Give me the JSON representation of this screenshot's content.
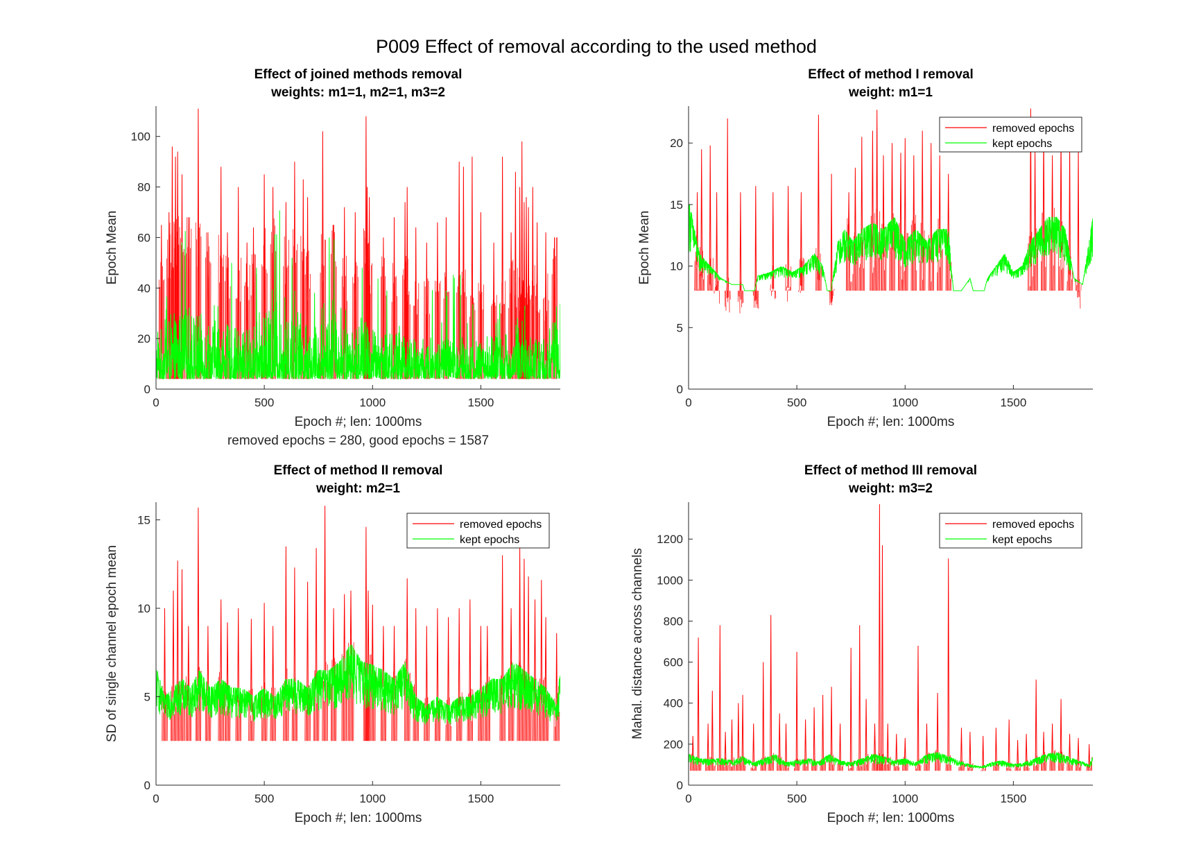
{
  "figure": {
    "title": "P009 Effect of removal according to the used method"
  },
  "colors": {
    "removed": "#ff0000",
    "kept": "#00ff00",
    "axis": "#262626"
  },
  "chart_data": [
    {
      "type": "line",
      "title": "Effect of joined methods removal",
      "subtitle": "weights: m1=1, m2=1, m3=2",
      "xlabel": "Epoch #; len: 1000ms",
      "xlabel2": "removed epochs = 280, good epochs = 1587",
      "ylabel": "Epoch Mean",
      "xlim": [
        0,
        1867
      ],
      "ylim": [
        0,
        112
      ],
      "xticks": [
        0,
        500,
        1000,
        1500
      ],
      "yticks": [
        0,
        20,
        40,
        60,
        80,
        100
      ],
      "legend": null,
      "series": [
        {
          "name": "removed epochs",
          "color": "#ff0000",
          "x": [
            25,
            60,
            75,
            90,
            100,
            120,
            150,
            195,
            240,
            300,
            330,
            380,
            420,
            450,
            500,
            540,
            600,
            640,
            680,
            700,
            770,
            820,
            870,
            920,
            970,
            975,
            985,
            1050,
            1100,
            1150,
            1160,
            1200,
            1250,
            1300,
            1340,
            1400,
            1420,
            1460,
            1500,
            1560,
            1600,
            1640,
            1660,
            1680,
            1690,
            1700,
            1710,
            1720,
            1740,
            1760,
            1800,
            1840
          ],
          "y": [
            65,
            70,
            96,
            92,
            94,
            85,
            68,
            111,
            62,
            88,
            62,
            80,
            58,
            64,
            85,
            80,
            74,
            90,
            83,
            76,
            102,
            65,
            72,
            70,
            108,
            80,
            76,
            60,
            68,
            74,
            80,
            64,
            58,
            66,
            68,
            90,
            88,
            92,
            70,
            58,
            92,
            62,
            86,
            80,
            98,
            74,
            76,
            72,
            80,
            66,
            62,
            60
          ]
        },
        {
          "name": "kept epochs",
          "color": "#00ff00",
          "x": [
            10,
            50,
            100,
            160,
            200,
            250,
            300,
            350,
            400,
            450,
            500,
            560,
            600,
            650,
            700,
            750,
            800,
            850,
            900,
            950,
            1000,
            1050,
            1100,
            1150,
            1200,
            1250,
            1300,
            1350,
            1400,
            1450,
            1500,
            1550,
            1600,
            1650,
            1700,
            1750,
            1800,
            1850
          ],
          "y": [
            45,
            60,
            63,
            70,
            62,
            58,
            55,
            50,
            48,
            52,
            60,
            78,
            55,
            70,
            50,
            52,
            72,
            55,
            45,
            62,
            48,
            55,
            45,
            50,
            38,
            42,
            40,
            44,
            50,
            38,
            40,
            45,
            42,
            48,
            40,
            45,
            38,
            71
          ]
        }
      ]
    },
    {
      "type": "line",
      "title": "Effect of method I removal",
      "subtitle": "weight: m1=1",
      "xlabel": "Epoch #; len: 1000ms",
      "ylabel": "Epoch Mean",
      "xlim": [
        0,
        1867
      ],
      "ylim": [
        0,
        23
      ],
      "xticks": [
        0,
        500,
        1000,
        1500
      ],
      "yticks": [
        0,
        5,
        10,
        15,
        20
      ],
      "legend": "top-right",
      "series": [
        {
          "name": "removed epochs",
          "color": "#ff0000",
          "x": [
            40,
            60,
            100,
            130,
            180,
            240,
            310,
            390,
            460,
            520,
            600,
            660,
            740,
            770,
            800,
            850,
            870,
            900,
            940,
            980,
            1000,
            1040,
            1080,
            1120,
            1160,
            1200,
            1580,
            1600,
            1640,
            1680,
            1720,
            1760,
            1800
          ],
          "y": [
            16,
            19.5,
            19.8,
            16,
            22,
            16,
            16.5,
            16,
            16.5,
            16,
            22.3,
            17.5,
            16,
            18,
            20.5,
            21,
            22.7,
            19,
            20,
            19.2,
            20.4,
            19,
            21,
            20,
            19,
            17.5,
            22.8,
            19.5,
            21,
            19,
            21,
            20,
            19.8
          ]
        },
        {
          "name": "kept epochs",
          "color": "#00ff00",
          "x": [
            5,
            50,
            100,
            150,
            200,
            250,
            285,
            320,
            380,
            430,
            480,
            530,
            580,
            620,
            650,
            690,
            720,
            760,
            800,
            850,
            900,
            950,
            1000,
            1050,
            1100,
            1150,
            1200,
            1230,
            1260,
            1300,
            1340,
            1380,
            1420,
            1460,
            1500,
            1540,
            1580,
            1620,
            1660,
            1700,
            1740,
            1780,
            1820,
            1867
          ],
          "y": [
            15,
            11,
            10,
            9,
            8.5,
            8.5,
            6.5,
            9.2,
            9.5,
            10,
            9.5,
            10,
            11,
            10,
            7,
            12,
            13,
            12,
            13,
            13.5,
            13,
            14,
            12,
            13,
            12,
            13,
            13,
            6.5,
            8,
            9,
            6.2,
            9,
            10,
            11,
            9.5,
            10,
            12,
            13,
            14,
            14,
            13,
            9,
            8.5,
            14
          ]
        }
      ]
    },
    {
      "type": "line",
      "title": "Effect of method II removal",
      "subtitle": "weight: m2=1",
      "xlabel": "Epoch #; len: 1000ms",
      "ylabel": "SD of single channel epoch mean",
      "xlim": [
        0,
        1867
      ],
      "ylim": [
        0,
        16
      ],
      "xticks": [
        0,
        500,
        1000,
        1500
      ],
      "yticks": [
        0,
        5,
        10,
        15
      ],
      "legend": "top-right",
      "series": [
        {
          "name": "removed epochs",
          "color": "#ff0000",
          "x": [
            40,
            80,
            100,
            120,
            150,
            195,
            240,
            300,
            330,
            380,
            440,
            500,
            540,
            600,
            640,
            700,
            740,
            780,
            820,
            870,
            900,
            970,
            980,
            1000,
            1050,
            1100,
            1160,
            1200,
            1250,
            1300,
            1350,
            1400,
            1450,
            1500,
            1530,
            1600,
            1640,
            1680,
            1700,
            1720,
            1750,
            1780,
            1800,
            1850
          ],
          "y": [
            10,
            11,
            12.7,
            12.2,
            9,
            15.7,
            9,
            10.5,
            9.2,
            10,
            9.4,
            10.3,
            9,
            13.5,
            12.3,
            11.5,
            13.4,
            15.8,
            10,
            10.8,
            11,
            14.6,
            11,
            10.2,
            9,
            9,
            11.7,
            10,
            9,
            10,
            9.5,
            10,
            10.5,
            9,
            9,
            13,
            10,
            13.5,
            12.8,
            11.8,
            10.5,
            11.6,
            9.5,
            8.6
          ]
        },
        {
          "name": "kept epochs",
          "color": "#00ff00",
          "x": [
            5,
            40,
            80,
            120,
            160,
            200,
            250,
            300,
            350,
            400,
            450,
            500,
            550,
            600,
            650,
            700,
            750,
            800,
            850,
            900,
            950,
            1000,
            1050,
            1100,
            1150,
            1200,
            1250,
            1300,
            1350,
            1400,
            1450,
            1500,
            1550,
            1600,
            1650,
            1700,
            1750,
            1800,
            1850,
            1867
          ],
          "y": [
            6.5,
            5,
            5.5,
            6,
            5.5,
            6.5,
            5.5,
            6,
            5.5,
            5.5,
            5,
            5.5,
            5,
            6,
            6,
            5.5,
            6.5,
            6.5,
            7,
            8,
            7,
            6.8,
            6.5,
            6,
            7,
            5,
            4.5,
            5,
            4.5,
            5,
            5,
            5.5,
            6,
            6,
            7,
            6.5,
            6,
            5.5,
            4.5,
            6.5
          ]
        }
      ]
    },
    {
      "type": "line",
      "title": "Effect of method III removal",
      "subtitle": "weight: m3=2",
      "xlabel": "Epoch #; len: 1000ms",
      "ylabel": "Mahal. distance across channels",
      "xlim": [
        0,
        1867
      ],
      "ylim": [
        0,
        1380
      ],
      "xticks": [
        0,
        500,
        1000,
        1500
      ],
      "yticks": [
        0,
        200,
        400,
        600,
        800,
        1000,
        1200
      ],
      "legend": "top-right",
      "series": [
        {
          "name": "removed epochs",
          "color": "#ff0000",
          "x": [
            20,
            45,
            90,
            110,
            145,
            170,
            200,
            230,
            250,
            300,
            345,
            380,
            420,
            450,
            500,
            540,
            580,
            620,
            660,
            700,
            750,
            790,
            820,
            860,
            882,
            895,
            920,
            960,
            1000,
            1060,
            1100,
            1150,
            1200,
            1260,
            1300,
            1360,
            1420,
            1480,
            1520,
            1560,
            1605,
            1640,
            1680,
            1720,
            1760,
            1800,
            1850
          ],
          "y": [
            240,
            720,
            300,
            460,
            780,
            260,
            320,
            400,
            440,
            300,
            600,
            830,
            350,
            300,
            650,
            320,
            380,
            440,
            480,
            300,
            670,
            780,
            420,
            300,
            1370,
            1170,
            300,
            250,
            230,
            680,
            300,
            450,
            1105,
            280,
            260,
            240,
            280,
            320,
            220,
            250,
            515,
            260,
            300,
            420,
            250,
            230,
            200
          ]
        },
        {
          "name": "kept epochs",
          "color": "#00ff00",
          "x": [
            5,
            50,
            100,
            150,
            200,
            250,
            300,
            350,
            400,
            450,
            500,
            550,
            600,
            650,
            700,
            750,
            800,
            850,
            900,
            950,
            1000,
            1050,
            1100,
            1150,
            1200,
            1250,
            1300,
            1350,
            1400,
            1450,
            1500,
            1550,
            1600,
            1650,
            1700,
            1750,
            1800,
            1850,
            1867
          ],
          "y": [
            150,
            130,
            125,
            130,
            120,
            140,
            110,
            130,
            150,
            110,
            120,
            130,
            115,
            150,
            120,
            110,
            130,
            150,
            140,
            120,
            130,
            110,
            150,
            160,
            140,
            120,
            100,
            90,
            110,
            120,
            100,
            110,
            130,
            150,
            160,
            140,
            120,
            100,
            140
          ]
        }
      ]
    }
  ]
}
